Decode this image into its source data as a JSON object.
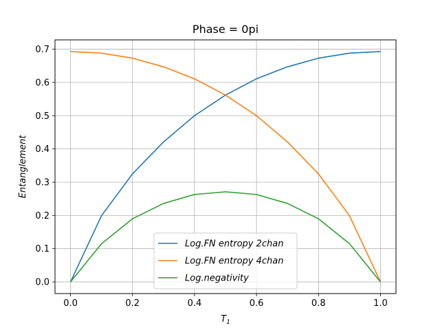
{
  "chart_data": {
    "type": "line",
    "title": "Phase = 0pi",
    "xlabel": "T",
    "xlabel_sub": "1",
    "ylabel": "Entanglement",
    "xlim": [
      -0.05,
      1.05
    ],
    "ylim": [
      -0.035,
      0.728
    ],
    "xticks": [
      0.0,
      0.2,
      0.4,
      0.6,
      0.8,
      1.0
    ],
    "xtick_labels": [
      "0.0",
      "0.2",
      "0.4",
      "0.6",
      "0.8",
      "1.0"
    ],
    "yticks": [
      0.0,
      0.1,
      0.2,
      0.3,
      0.4,
      0.5,
      0.6,
      0.7
    ],
    "ytick_labels": [
      "0.0",
      "0.1",
      "0.2",
      "0.3",
      "0.4",
      "0.5",
      "0.6",
      "0.7"
    ],
    "grid": true,
    "legend_position": "lower-center",
    "x": [
      0.0,
      0.1,
      0.2,
      0.3,
      0.4,
      0.5,
      0.6,
      0.7,
      0.8,
      0.9,
      1.0
    ],
    "series": [
      {
        "name": "Log.FN entropy 2chan",
        "color": "#1f77b4",
        "values": [
          0.0,
          0.199,
          0.325,
          0.421,
          0.5,
          0.562,
          0.611,
          0.647,
          0.673,
          0.688,
          0.693
        ]
      },
      {
        "name": "Log.FN entropy 4chan",
        "color": "#ff7f0e",
        "values": [
          0.693,
          0.688,
          0.673,
          0.647,
          0.611,
          0.562,
          0.5,
          0.421,
          0.325,
          0.199,
          0.0
        ]
      },
      {
        "name": "Log.negativity",
        "color": "#2ca02c",
        "values": [
          0.0,
          0.115,
          0.19,
          0.236,
          0.263,
          0.271,
          0.263,
          0.236,
          0.19,
          0.115,
          0.0
        ]
      }
    ]
  }
}
